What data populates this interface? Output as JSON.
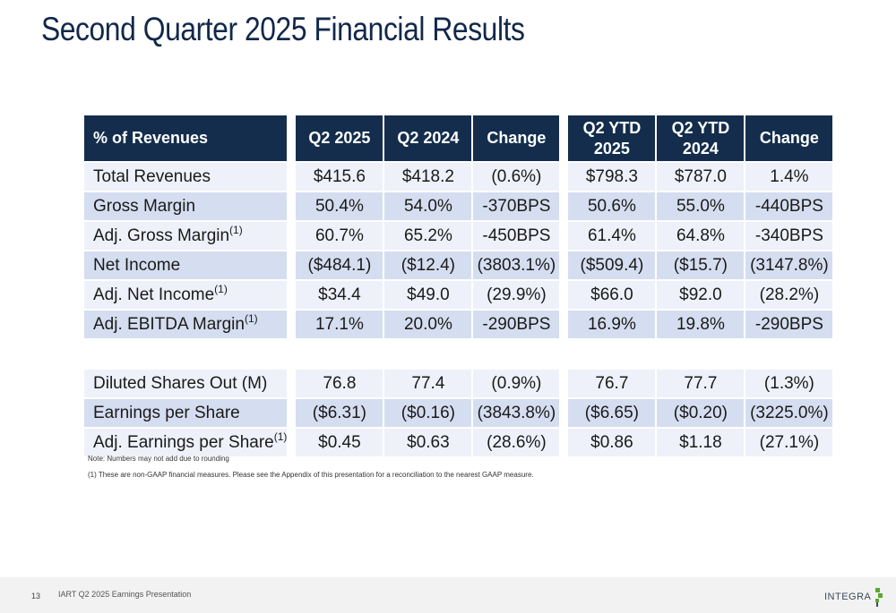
{
  "title": "Second Quarter 2025 Financial Results",
  "table": {
    "headers": {
      "label": "% of Revenues",
      "q2_2025": "Q2 2025",
      "q2_2024": "Q2 2024",
      "change": "Change",
      "ytd_2025_line1": "Q2 YTD",
      "ytd_2025_line2": "2025",
      "ytd_2024_line1": "Q2 YTD",
      "ytd_2024_line2": "2024",
      "ytd_change": "Change"
    },
    "rows": [
      {
        "label": "Total Revenues",
        "footnote": "",
        "q2_2025": "$415.6",
        "q2_2024": "$418.2",
        "change": "(0.6%)",
        "ytd_2025": "$798.3",
        "ytd_2024": "$787.0",
        "ytd_change": "1.4%"
      },
      {
        "label": "Gross Margin",
        "footnote": "",
        "q2_2025": "50.4%",
        "q2_2024": "54.0%",
        "change": "-370BPS",
        "ytd_2025": "50.6%",
        "ytd_2024": "55.0%",
        "ytd_change": "-440BPS"
      },
      {
        "label": "Adj. Gross Margin",
        "footnote": "(1)",
        "q2_2025": "60.7%",
        "q2_2024": "65.2%",
        "change": "-450BPS",
        "ytd_2025": "61.4%",
        "ytd_2024": "64.8%",
        "ytd_change": "-340BPS"
      },
      {
        "label": "Net Income",
        "footnote": "",
        "q2_2025": "($484.1)",
        "q2_2024": "($12.4)",
        "change": "(3803.1%)",
        "ytd_2025": "($509.4)",
        "ytd_2024": "($15.7)",
        "ytd_change": "(3147.8%)"
      },
      {
        "label": "Adj. Net Income",
        "footnote": "(1)",
        "q2_2025": "$34.4",
        "q2_2024": "$49.0",
        "change": "(29.9%)",
        "ytd_2025": "$66.0",
        "ytd_2024": "$92.0",
        "ytd_change": "(28.2%)"
      },
      {
        "label": "Adj. EBITDA Margin",
        "footnote": "(1)",
        "q2_2025": "17.1%",
        "q2_2024": "20.0%",
        "change": "-290BPS",
        "ytd_2025": "16.9%",
        "ytd_2024": "19.8%",
        "ytd_change": "-290BPS"
      }
    ],
    "rows2": [
      {
        "label": "Diluted Shares Out (M)",
        "footnote": "",
        "q2_2025": "76.8",
        "q2_2024": "77.4",
        "change": "(0.9%)",
        "ytd_2025": "76.7",
        "ytd_2024": "77.7",
        "ytd_change": "(1.3%)"
      },
      {
        "label": "Earnings per Share",
        "footnote": "",
        "q2_2025": "($6.31)",
        "q2_2024": "($0.16)",
        "change": "(3843.8%)",
        "ytd_2025": "($6.65)",
        "ytd_2024": "($0.20)",
        "ytd_change": "(3225.0%)"
      },
      {
        "label": "Adj. Earnings per Share",
        "footnote": "(1)",
        "q2_2025": "$0.45",
        "q2_2024": "$0.63",
        "change": "(28.6%)",
        "ytd_2025": "$0.86",
        "ytd_2024": "$1.18",
        "ytd_change": "(27.1%)"
      }
    ]
  },
  "notes": {
    "rounding": "Note: Numbers may not add due to rounding",
    "nongaap": "(1) These are non-GAAP financial measures. Please see the Appendix of this presentation for a reconciliation to the nearest GAAP measure."
  },
  "footer": {
    "page_number": "13",
    "presentation": "IART Q2 2025 Earnings Presentation",
    "logo_text": "INTEGRA",
    "logo_icon": "integra-leaf-icon",
    "logo_color": "#5aa832"
  }
}
